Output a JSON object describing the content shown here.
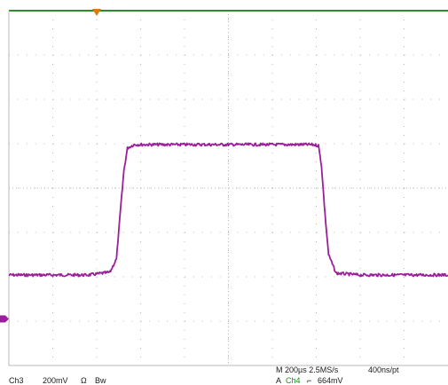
{
  "screen": {
    "background": "#ffffff",
    "grid_color": "#b8b8b8",
    "border_color": "#2e8b2e",
    "trace_color": "#9b1f9b",
    "trigger_color": "#e07a00",
    "channel_marker_color": "#9b1f9b"
  },
  "chart_data": {
    "type": "line",
    "title": "",
    "xlabel": "",
    "ylabel": "",
    "grid": true,
    "x_divisions": 10,
    "y_divisions": 8,
    "x_unit": "div",
    "y_unit": "div",
    "xlim": [
      0,
      10
    ],
    "ylim": [
      -4,
      4
    ],
    "series": [
      {
        "channel": "Ch3",
        "x": [
          0,
          0.6,
          1.2,
          1.8,
          2.3,
          2.45,
          2.55,
          2.62,
          2.7,
          2.85,
          3.05,
          4.5,
          6.0,
          6.9,
          7.05,
          7.12,
          7.2,
          7.28,
          7.45,
          8.0,
          9.0,
          10.0
        ],
        "y": [
          -1.96,
          -1.96,
          -1.96,
          -1.96,
          -1.9,
          -1.6,
          -0.4,
          0.4,
          0.9,
          0.98,
          0.98,
          0.98,
          0.98,
          0.98,
          0.96,
          0.5,
          -0.6,
          -1.5,
          -1.92,
          -1.96,
          -1.96,
          -1.96
        ]
      }
    ]
  },
  "trigger_marker": {
    "x_div": 2.0,
    "icon": "triangle-down-icon"
  },
  "channel_marker": {
    "y_div": -2.95,
    "icon": "ground-marker-icon"
  },
  "status": {
    "channel": "Ch3",
    "scale": "200mV",
    "coupling_icon": "ohm-symbol",
    "coupling": "Ω",
    "bandwidth": "Bw",
    "timebase": "M 200µs 2.5MS/s",
    "record": "400ns/pt",
    "trigger_prefix": "A",
    "trigger_source": "Ch4",
    "trigger_edge": "⌐",
    "trigger_level": "664mV"
  }
}
